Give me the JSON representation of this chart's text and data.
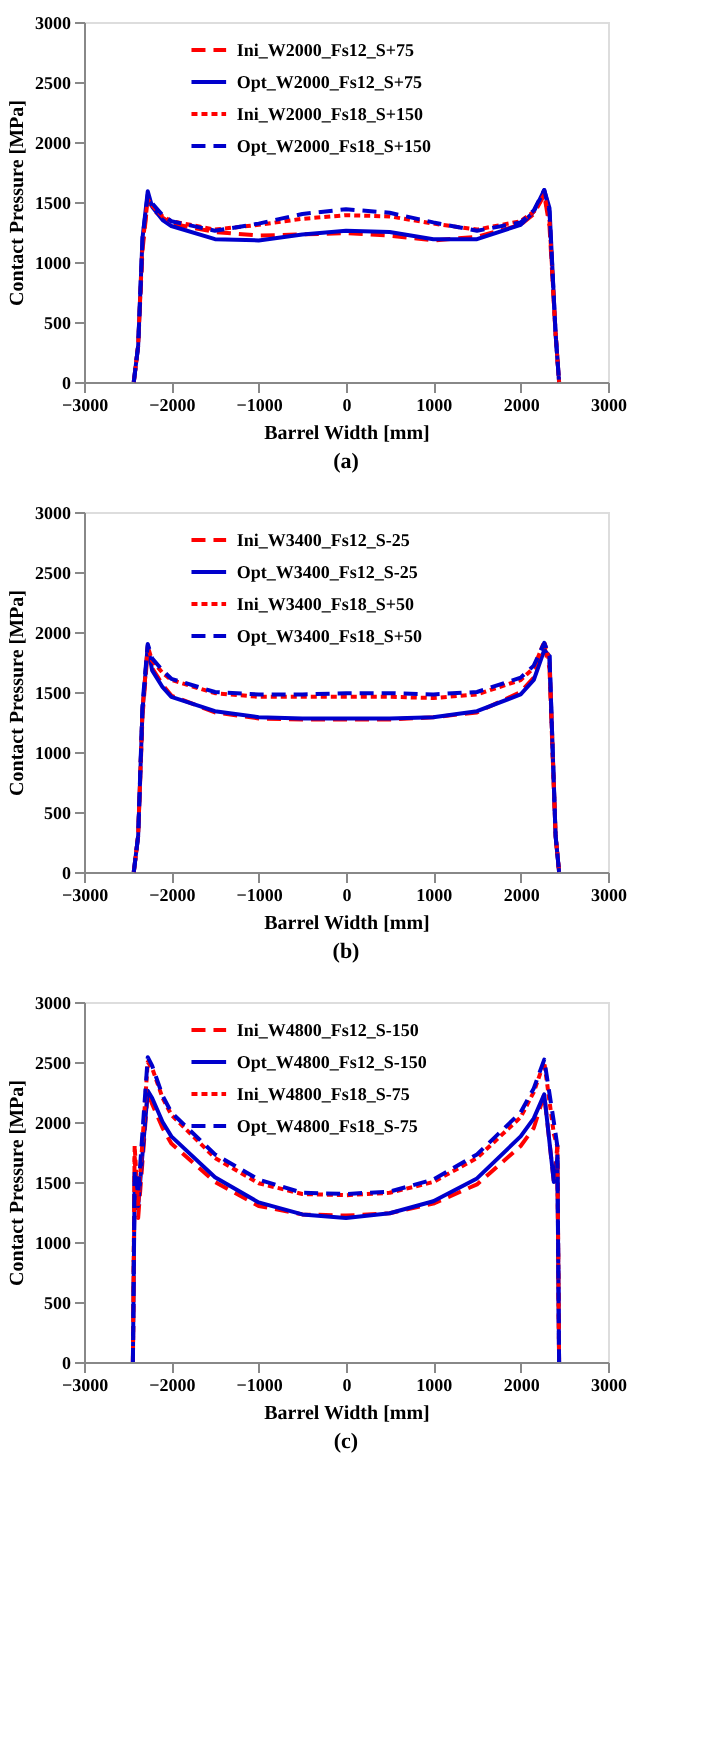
{
  "chart_data": [
    {
      "type": "line",
      "title": "(a)",
      "xlabel": "Barrel Width [mm]",
      "ylabel": "Contact Pressure [MPa]",
      "xlim": [
        -3000,
        3000
      ],
      "xticks": [
        -3000,
        -2000,
        -1000,
        0,
        1000,
        2000,
        3000
      ],
      "ylim": [
        0,
        3000
      ],
      "yticks": [
        0,
        500,
        1000,
        1500,
        2000,
        2500,
        3000
      ],
      "grid": false,
      "legend": "top",
      "marker": "none",
      "x": [
        -2430,
        -2380,
        -2330,
        -2270,
        -2220,
        -2100,
        -2000,
        -1500,
        -1000,
        -500,
        0,
        500,
        1000,
        1500,
        2000,
        2150,
        2270,
        2330,
        2400,
        2440
      ],
      "series": [
        {
          "name": "Ini_W2000_Fs12_S+75",
          "color": "#ff0000",
          "line_style": "dashed",
          "values": [
            0,
            300,
            1100,
            1520,
            1440,
            1370,
            1320,
            1250,
            1220,
            1230,
            1240,
            1220,
            1180,
            1210,
            1310,
            1400,
            1560,
            1300,
            400,
            0
          ]
        },
        {
          "name": "Opt_W2000_Fs12_S+75",
          "color": "#0000cc",
          "line_style": "solid",
          "values": [
            0,
            300,
            1200,
            1590,
            1460,
            1350,
            1300,
            1190,
            1180,
            1230,
            1260,
            1250,
            1190,
            1190,
            1310,
            1420,
            1600,
            1450,
            400,
            0
          ]
        },
        {
          "name": "Ini_W2000_Fs18_S+150",
          "color": "#ff0000",
          "line_style": "dotted",
          "values": [
            0,
            300,
            1150,
            1520,
            1470,
            1380,
            1340,
            1270,
            1310,
            1360,
            1390,
            1380,
            1320,
            1270,
            1340,
            1420,
            1560,
            1350,
            400,
            0
          ]
        },
        {
          "name": "Opt_W2000_Fs18_S+150",
          "color": "#0000cc",
          "line_style": "dashed",
          "values": [
            0,
            300,
            1200,
            1560,
            1490,
            1390,
            1340,
            1260,
            1320,
            1400,
            1440,
            1410,
            1330,
            1260,
            1330,
            1430,
            1600,
            1420,
            400,
            0
          ]
        }
      ]
    },
    {
      "type": "line",
      "title": "(b)",
      "xlabel": "Barrel Width [mm]",
      "ylabel": "Contact Pressure [MPa]",
      "xlim": [
        -3000,
        3000
      ],
      "xticks": [
        -3000,
        -2000,
        -1000,
        0,
        1000,
        2000,
        3000
      ],
      "ylim": [
        0,
        3000
      ],
      "yticks": [
        0,
        500,
        1000,
        1500,
        2000,
        2500,
        3000
      ],
      "grid": false,
      "legend": "top",
      "marker": "none",
      "x": [
        -2430,
        -2380,
        -2330,
        -2270,
        -2220,
        -2100,
        -2000,
        -1500,
        -1000,
        -500,
        0,
        500,
        1000,
        1500,
        2000,
        2150,
        2270,
        2330,
        2400,
        2440
      ],
      "series": [
        {
          "name": "Ini_W3400_Fs12_S-25",
          "color": "#ff0000",
          "line_style": "dashed",
          "values": [
            0,
            300,
            1300,
            1850,
            1700,
            1560,
            1470,
            1330,
            1280,
            1270,
            1270,
            1270,
            1290,
            1330,
            1500,
            1620,
            1880,
            1700,
            300,
            0
          ]
        },
        {
          "name": "Opt_W3400_Fs12_S-25",
          "color": "#0000cc",
          "line_style": "solid",
          "values": [
            0,
            300,
            1350,
            1890,
            1680,
            1540,
            1460,
            1340,
            1290,
            1280,
            1280,
            1280,
            1290,
            1340,
            1480,
            1600,
            1850,
            1800,
            300,
            0
          ]
        },
        {
          "name": "Ini_W3400_Fs18_S+50",
          "color": "#ff0000",
          "line_style": "dotted",
          "values": [
            0,
            300,
            1350,
            1880,
            1760,
            1660,
            1600,
            1490,
            1460,
            1460,
            1460,
            1460,
            1450,
            1480,
            1600,
            1700,
            1920,
            1750,
            300,
            0
          ]
        },
        {
          "name": "Opt_W3400_Fs18_S+50",
          "color": "#0000cc",
          "line_style": "dashed",
          "values": [
            0,
            300,
            1400,
            1900,
            1780,
            1680,
            1610,
            1500,
            1480,
            1480,
            1490,
            1490,
            1480,
            1500,
            1620,
            1720,
            1910,
            1800,
            300,
            0
          ]
        }
      ]
    },
    {
      "type": "line",
      "title": "(c)",
      "xlabel": "Barrel Width [mm]",
      "ylabel": "Contact Pressure [MPa]",
      "xlim": [
        -3000,
        3000
      ],
      "xticks": [
        -3000,
        -2000,
        -1000,
        0,
        1000,
        2000,
        3000
      ],
      "ylim": [
        0,
        3000
      ],
      "yticks": [
        0,
        500,
        1000,
        1500,
        2000,
        2500,
        3000
      ],
      "grid": false,
      "legend": "top",
      "marker": "none",
      "x": [
        -2440,
        -2420,
        -2380,
        -2270,
        -2220,
        -2100,
        -2000,
        -1500,
        -1000,
        -500,
        0,
        500,
        1000,
        1500,
        2000,
        2150,
        2270,
        2380,
        2420,
        2440
      ],
      "series": [
        {
          "name": "Ini_W4800_Fs12_S-150",
          "color": "#ff0000",
          "line_style": "dashed",
          "values": [
            0,
            1700,
            1200,
            2250,
            2150,
            1950,
            1820,
            1500,
            1300,
            1230,
            1220,
            1240,
            1320,
            1480,
            1800,
            1950,
            2230,
            1500,
            1800,
            0
          ]
        },
        {
          "name": "Opt_W4800_Fs12_S-150",
          "color": "#0000cc",
          "line_style": "solid",
          "values": [
            0,
            1500,
            1300,
            2260,
            2200,
            2000,
            1880,
            1540,
            1330,
            1230,
            1200,
            1240,
            1340,
            1530,
            1880,
            2030,
            2230,
            1500,
            1700,
            0
          ]
        },
        {
          "name": "Ini_W4800_Fs18_S-75",
          "color": "#ff0000",
          "line_style": "dotted",
          "values": [
            0,
            1800,
            1300,
            2500,
            2450,
            2200,
            2060,
            1700,
            1490,
            1400,
            1390,
            1410,
            1500,
            1700,
            2040,
            2250,
            2500,
            1900,
            1800,
            0
          ]
        },
        {
          "name": "Opt_W4800_Fs18_S-75",
          "color": "#0000cc",
          "line_style": "dashed",
          "values": [
            0,
            1600,
            1400,
            2540,
            2470,
            2220,
            2080,
            1730,
            1520,
            1410,
            1400,
            1420,
            1520,
            1730,
            2080,
            2280,
            2520,
            2000,
            1800,
            0
          ]
        }
      ]
    }
  ]
}
